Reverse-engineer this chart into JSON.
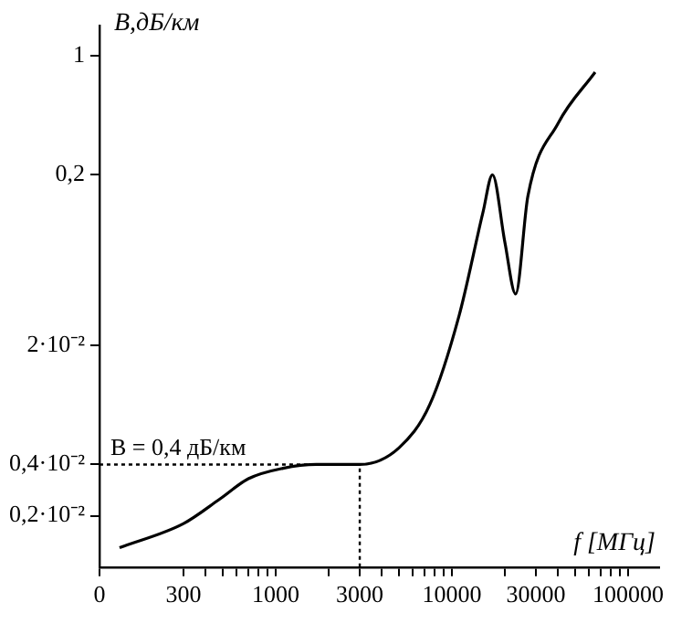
{
  "chart_data": {
    "type": "line",
    "xlabel": "f [МГц]",
    "ylabel": "B,дБ/км",
    "log": "xy",
    "grid": false,
    "legend": false,
    "marker": "none",
    "line_style": "solid",
    "x": [
      130,
      300,
      480,
      700,
      1100,
      1700,
      3000,
      5000,
      7500,
      11000,
      15000,
      17000,
      20000,
      23000,
      27000,
      40000,
      65000
    ],
    "series": [
      {
        "color": "#000000",
        "values": [
          0.0013,
          0.0018,
          0.0025,
          0.0033,
          0.0038,
          0.004,
          0.004,
          0.005,
          0.009,
          0.03,
          0.12,
          0.2,
          0.08,
          0.04,
          0.15,
          0.4,
          0.8
        ]
      }
    ],
    "xlim": [
      0,
      150000
    ],
    "xticks": [
      0,
      300,
      {
        "value": 400,
        "label": null
      },
      {
        "value": 500,
        "label": null
      },
      {
        "value": 600,
        "label": null
      },
      {
        "value": 700,
        "label": null
      },
      {
        "value": 800,
        "label": null
      },
      {
        "value": 900,
        "label": null
      },
      1000,
      {
        "value": 2000,
        "label": null
      },
      3000,
      {
        "value": 4000,
        "label": null
      },
      {
        "value": 5000,
        "label": null
      },
      {
        "value": 6000,
        "label": null
      },
      {
        "value": 7000,
        "label": null
      },
      {
        "value": 8000,
        "label": null
      },
      {
        "value": 9000,
        "label": null
      },
      10000,
      {
        "value": 20000,
        "label": null
      },
      30000,
      {
        "value": 40000,
        "label": null
      },
      {
        "value": 50000,
        "label": null
      },
      {
        "value": 60000,
        "label": null
      },
      {
        "value": 70000,
        "label": null
      },
      {
        "value": 80000,
        "label": null
      },
      {
        "value": 90000,
        "label": null
      },
      100000
    ],
    "ylim": [
      0.001,
      1.5
    ],
    "yticks": [
      {
        "value": 0.002,
        "label": "0,2·10⁻²"
      },
      {
        "value": 0.004,
        "label": "0,4·10⁻²"
      },
      {
        "value": 0.02,
        "label": "2·10⁻²"
      },
      {
        "value": 0.2,
        "label": "0,2"
      },
      1
    ],
    "ref_lines": [
      {
        "axis": "y",
        "value": 0.004,
        "label": "B = 0,4 дБ/км",
        "line_style": "dotted"
      },
      {
        "axis": "x",
        "value": 3000,
        "line_style": "dotted"
      }
    ]
  }
}
